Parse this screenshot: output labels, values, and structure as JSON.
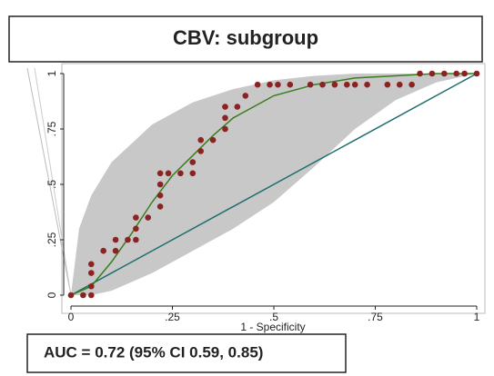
{
  "chart_data": {
    "type": "scatter",
    "title": "CBV: subgroup",
    "xlabel": "1 - Specificity",
    "annotation": "AUC = 0.72 (95% CI 0.59, 0.85)",
    "xlim": [
      0,
      1
    ],
    "ylim": [
      0,
      1
    ],
    "xticks": [
      0,
      {
        "value": 0.25,
        "label": ".25"
      },
      {
        "value": 0.5,
        "label": ".5"
      },
      {
        "value": 0.75,
        "label": ".75"
      },
      1
    ],
    "yticks": [
      0,
      {
        "value": 0.25,
        "label": ".25"
      },
      {
        "value": 0.5,
        "label": ".5"
      },
      {
        "value": 0.75,
        "label": ".75"
      },
      1
    ],
    "points": {
      "color": "#8b2323",
      "x": [
        0,
        0.03,
        0.05,
        0.05,
        0.05,
        0.05,
        0.08,
        0.11,
        0.11,
        0.14,
        0.16,
        0.16,
        0.16,
        0.19,
        0.22,
        0.22,
        0.22,
        0.22,
        0.24,
        0.27,
        0.3,
        0.3,
        0.32,
        0.32,
        0.35,
        0.38,
        0.38,
        0.38,
        0.41,
        0.43,
        0.46,
        0.49,
        0.51,
        0.54,
        0.59,
        0.62,
        0.65,
        0.68,
        0.7,
        0.73,
        0.78,
        0.81,
        0.84,
        0.86,
        0.89,
        0.92,
        0.95,
        0.97,
        1
      ],
      "y": [
        0,
        0,
        0,
        0.04,
        0.1,
        0.14,
        0.2,
        0.2,
        0.25,
        0.25,
        0.25,
        0.3,
        0.35,
        0.35,
        0.4,
        0.45,
        0.5,
        0.55,
        0.55,
        0.55,
        0.55,
        0.6,
        0.65,
        0.7,
        0.7,
        0.75,
        0.8,
        0.85,
        0.85,
        0.9,
        0.95,
        0.95,
        0.95,
        0.95,
        0.95,
        0.95,
        0.95,
        0.95,
        0.95,
        0.95,
        0.95,
        0.95,
        0.95,
        1,
        1,
        1,
        1,
        1,
        1
      ]
    },
    "fit": {
      "color": "#3a7d1e",
      "x": [
        0,
        0.05,
        0.1,
        0.15,
        0.2,
        0.25,
        0.3,
        0.35,
        0.4,
        0.5,
        0.6,
        0.7,
        0.8,
        0.9,
        1
      ],
      "y": [
        0,
        0.04,
        0.15,
        0.28,
        0.42,
        0.54,
        0.63,
        0.72,
        0.8,
        0.9,
        0.95,
        0.98,
        0.99,
        1,
        1
      ]
    },
    "band": {
      "color": "#c8c8c8",
      "x": [
        0,
        0.02,
        0.05,
        0.1,
        0.2,
        0.3,
        0.4,
        0.5,
        0.6,
        0.7,
        0.8,
        0.9,
        1
      ],
      "upper": [
        0,
        0.3,
        0.45,
        0.6,
        0.77,
        0.87,
        0.93,
        0.97,
        0.99,
        1,
        1,
        1,
        1
      ],
      "lower": [
        0,
        0,
        0,
        0.02,
        0.1,
        0.2,
        0.3,
        0.42,
        0.58,
        0.75,
        0.88,
        0.96,
        1
      ]
    },
    "reference": {
      "color": "#1f6e6e",
      "x": [
        0,
        1
      ],
      "y": [
        0,
        1
      ]
    }
  }
}
